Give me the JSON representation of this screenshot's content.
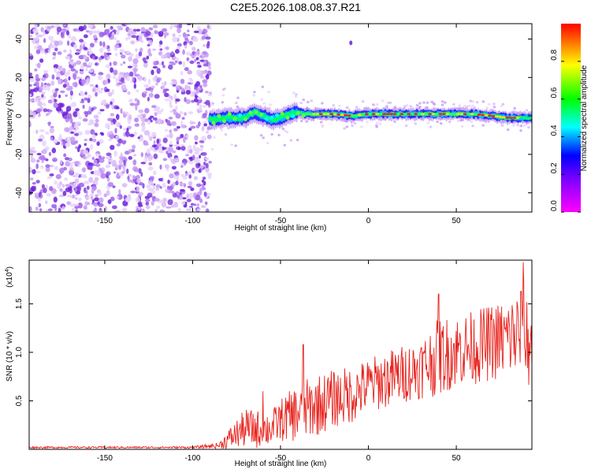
{
  "title": "C2E5.2026.108.08.37.R21",
  "colors": {
    "frame": "#000000",
    "snr_line": "#e8221c",
    "spectro_cloud": "#8a3ce0"
  },
  "chart_data": [
    {
      "type": "heatmap",
      "name": "spectrogram",
      "xlabel": "Height of straight line (km)",
      "ylabel": "Frequency (Hz)",
      "xlim": [
        -193,
        93
      ],
      "ylim": [
        -50,
        48
      ],
      "xticks": [
        -150,
        -100,
        -50,
        0,
        50
      ],
      "xtick_labels": [
        "-150",
        "-100",
        "-50",
        "0",
        "50"
      ],
      "yticks": [
        -40,
        -20,
        0,
        20,
        40
      ],
      "ytick_labels": [
        "-40",
        "-20",
        "0",
        "20",
        "40"
      ],
      "colorbar": {
        "label": "Normalized spectral amplitude",
        "range": [
          0,
          1
        ],
        "ticks": [
          0.0,
          0.2,
          0.4,
          0.6,
          0.8
        ],
        "tick_labels": [
          "0.0",
          "0.2",
          "0.4",
          "0.6",
          "0.8"
        ],
        "colormap": [
          "#ff00ff",
          "#8000ff",
          "#0000ff",
          "#00ffff",
          "#00ff00",
          "#ffff00",
          "#ff0000"
        ]
      },
      "regions": [
        {
          "x": [
            -193,
            -90
          ],
          "y": [
            -50,
            48
          ],
          "description_level": "noise"
        },
        {
          "x": [
            -90,
            93
          ],
          "y_center": 1,
          "level": "signal band"
        }
      ],
      "signal_centerline": {
        "x": [
          -90,
          -80,
          -70,
          -65,
          -60,
          -55,
          -50,
          -45,
          -40,
          -35,
          -30,
          -20,
          -10,
          0,
          10,
          20,
          30,
          40,
          50,
          60,
          70,
          80,
          93
        ],
        "y": [
          -2,
          -1,
          -1,
          2,
          0,
          -2,
          -1,
          1,
          2,
          1,
          1,
          1,
          0,
          1,
          1,
          1,
          1,
          1,
          1,
          1,
          0,
          -1,
          -1
        ]
      },
      "isolated_point": {
        "x": -10,
        "y": 38
      }
    },
    {
      "type": "line",
      "name": "snr",
      "xlabel": "Height of straight line (km)",
      "ylabel": "SNR (10 * v/v)",
      "multiplier_label": "(x10",
      "multiplier_exp": "4",
      "multiplier_close": ")",
      "xlim": [
        -193,
        93
      ],
      "ylim": [
        0,
        1.95
      ],
      "xticks": [
        -150,
        -100,
        -50,
        0,
        50
      ],
      "xtick_labels": [
        "-150",
        "-100",
        "-50",
        "0",
        "50"
      ],
      "yticks": [
        0.5,
        1.0,
        1.5
      ],
      "ytick_labels": [
        "0.5",
        "1.0",
        "1.5"
      ],
      "envelope": {
        "x": [
          -193,
          -100,
          -85,
          -80,
          -70,
          -60,
          -55,
          -50,
          -40,
          -30,
          -20,
          -10,
          0,
          10,
          20,
          30,
          40,
          50,
          60,
          70,
          80,
          88,
          93
        ],
        "mean": [
          0.02,
          0.02,
          0.04,
          0.1,
          0.22,
          0.2,
          0.22,
          0.3,
          0.38,
          0.45,
          0.52,
          0.56,
          0.66,
          0.72,
          0.78,
          0.84,
          0.95,
          1.02,
          1.05,
          1.1,
          1.15,
          1.2,
          1.05
        ],
        "amplitude": [
          0.01,
          0.01,
          0.03,
          0.1,
          0.2,
          0.2,
          0.18,
          0.22,
          0.3,
          0.32,
          0.3,
          0.3,
          0.28,
          0.3,
          0.3,
          0.32,
          0.4,
          0.38,
          0.38,
          0.4,
          0.42,
          0.55,
          0.45
        ]
      },
      "peaks": [
        {
          "x": 88,
          "y": 1.93
        },
        {
          "x": 40,
          "y": 1.6
        },
        {
          "x": -37,
          "y": 1.08
        },
        {
          "x": -60,
          "y": 0.6
        }
      ]
    }
  ]
}
